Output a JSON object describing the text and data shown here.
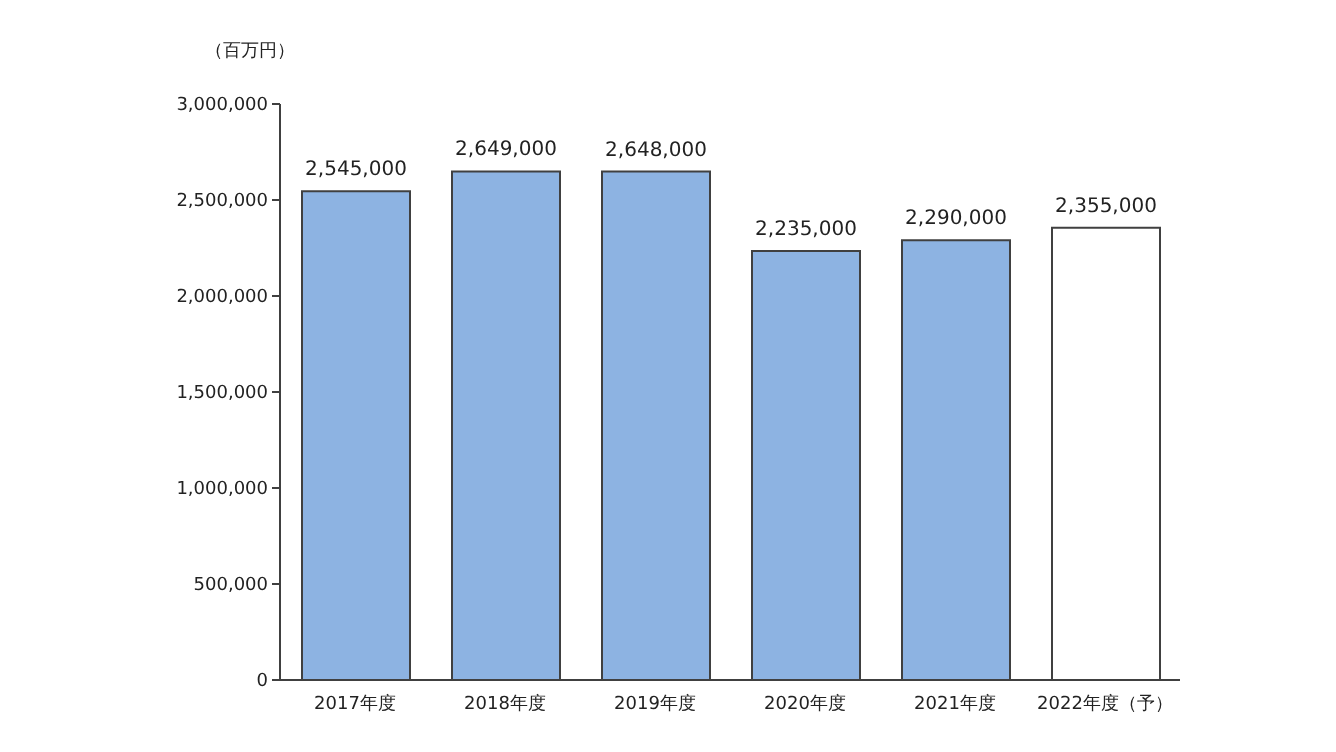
{
  "chart_data": {
    "type": "bar",
    "ylabel": "（百万円）",
    "categories": [
      "2017年度",
      "2018年度",
      "2019年度",
      "2020年度",
      "2021年度",
      "2022年度（予）"
    ],
    "values": [
      2545000,
      2649000,
      2648000,
      2235000,
      2290000,
      2355000
    ],
    "colors": [
      "#8db3e2",
      "#8db3e2",
      "#8db3e2",
      "#8db3e2",
      "#8db3e2",
      "#ffffff"
    ],
    "value_labels": [
      "2,545,000",
      "2,649,000",
      "2,648,000",
      "2,235,000",
      "2,290,000",
      "2,355,000"
    ],
    "ylim": [
      0,
      3000000
    ],
    "yticks": [
      {
        "value": 0,
        "label": "0"
      },
      {
        "value": 500000,
        "label": "500,000"
      },
      {
        "value": 1000000,
        "label": "1,000,000"
      },
      {
        "value": 1500000,
        "label": "1,500,000"
      },
      {
        "value": 2000000,
        "label": "2,000,000"
      },
      {
        "value": 2500000,
        "label": "2,500,000"
      },
      {
        "value": 3000000,
        "label": "3,000,000"
      }
    ],
    "grid": false,
    "legend": false
  }
}
